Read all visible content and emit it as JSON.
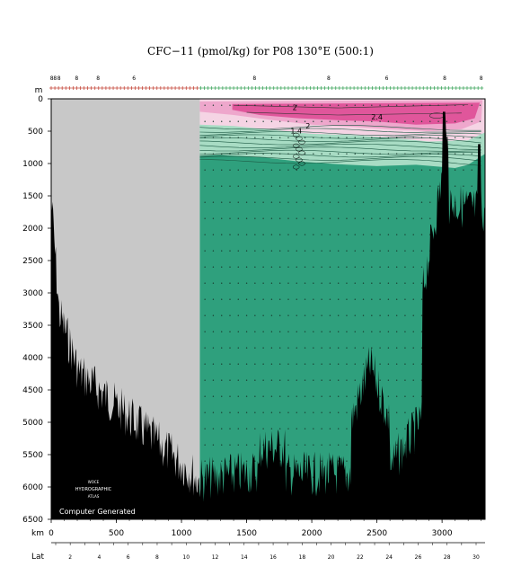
{
  "chart_data": {
    "type": "contour-section",
    "title": "CFC−11 (pmol/kg) for P08 130°E (500:1)",
    "y_unit_label": "m",
    "x_unit_label": "km",
    "lat_label": "Lat",
    "depth_ticks": [
      0,
      500,
      1000,
      1500,
      2000,
      2500,
      3000,
      3500,
      4000,
      4500,
      5000,
      5500,
      6000,
      6500
    ],
    "km_ticks": [
      0,
      500,
      1000,
      1500,
      2000,
      2500,
      3000
    ],
    "lat_ticks": [
      2,
      4,
      6,
      8,
      10,
      12,
      14,
      16,
      18,
      20,
      22,
      24,
      26,
      28,
      30
    ],
    "xlim_km": [
      0,
      3330
    ],
    "ylim_m": [
      0,
      6500
    ],
    "no_data_until_km": 1140,
    "top_station_labels": [
      {
        "km": 5,
        "text": "8"
      },
      {
        "km": 30,
        "text": "8"
      },
      {
        "km": 60,
        "text": "8"
      },
      {
        "km": 195,
        "text": "8"
      },
      {
        "km": 360,
        "text": "8"
      },
      {
        "km": 635,
        "text": "6"
      },
      {
        "km": 1560,
        "text": "8"
      },
      {
        "km": 2130,
        "text": "8"
      },
      {
        "km": 2575,
        "text": "6"
      },
      {
        "km": 3020,
        "text": "8"
      },
      {
        "km": 3300,
        "text": "8"
      }
    ],
    "contour_labels": [
      {
        "km": 1870,
        "depth": 130,
        "text": "2"
      },
      {
        "km": 2500,
        "depth": 280,
        "text": "2.4"
      },
      {
        "km": 1970,
        "depth": 420,
        "text": "2"
      },
      {
        "km": 1880,
        "depth": 490,
        "text": "1.4"
      }
    ],
    "colors": {
      "high": "#e0569b",
      "mid": "#eea7cc",
      "low": "#f5d4e4",
      "trace": "#a8dcc4",
      "background": "#2fa07d",
      "no_data": "#c8c8c8",
      "bathymetry": "#000000"
    },
    "watermark": {
      "line1": "WOCE",
      "line2": "HYDROGRAPHIC",
      "line3": "ATLAS",
      "credit": "Computer Generated"
    }
  }
}
